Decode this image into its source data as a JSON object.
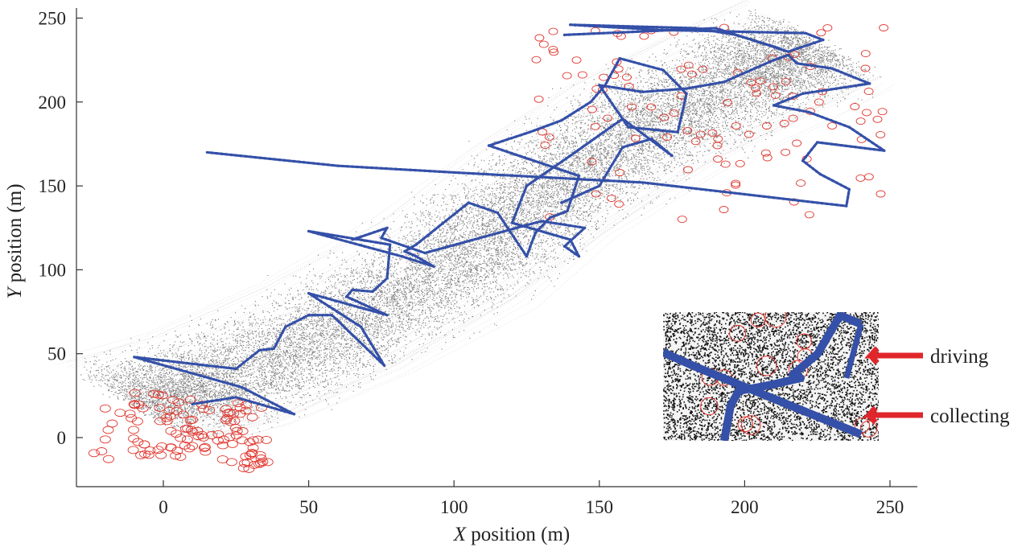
{
  "chart_data": {
    "type": "scatter",
    "title": "",
    "xlabel_var": "X",
    "xlabel_rest": " position (m)",
    "ylabel_var": "Y",
    "ylabel_rest": " position (m)",
    "xlim": [
      -30,
      260
    ],
    "ylim": [
      -30,
      255
    ],
    "x_ticks": [
      0,
      50,
      100,
      150,
      200,
      250
    ],
    "y_ticks": [
      0,
      50,
      100,
      150,
      200,
      250
    ],
    "grid": false,
    "colors": {
      "path": "#3450a8",
      "cloud": "#1a1a1a",
      "targets": "#e0342c",
      "arrows": "#e0262b"
    },
    "series": [
      {
        "role": "path",
        "points": [
          [
            10,
            20
          ],
          [
            25,
            24
          ],
          [
            45,
            14
          ],
          [
            27,
            30
          ],
          [
            -10,
            48
          ],
          [
            25,
            41
          ],
          [
            33,
            52
          ],
          [
            38,
            53
          ],
          [
            42,
            66
          ],
          [
            50,
            73
          ],
          [
            58,
            73
          ],
          [
            76,
            43
          ],
          [
            68,
            66
          ],
          [
            50,
            86
          ],
          [
            77,
            73
          ],
          [
            63,
            84
          ],
          [
            65,
            88
          ],
          [
            72,
            87
          ],
          [
            77,
            95
          ],
          [
            78,
            115
          ],
          [
            50,
            123
          ],
          [
            82,
            108
          ],
          [
            93,
            102
          ],
          [
            87,
            108
          ],
          [
            83,
            111
          ],
          [
            87,
            115
          ],
          [
            105,
            140
          ],
          [
            115,
            134
          ],
          [
            125,
            108
          ],
          [
            128,
            122
          ],
          [
            133,
            131
          ],
          [
            139,
            135
          ],
          [
            143,
            156
          ],
          [
            112,
            174
          ],
          [
            126,
            182
          ],
          [
            137,
            189
          ],
          [
            147,
            200
          ],
          [
            152,
            210
          ],
          [
            157,
            226
          ],
          [
            172,
            219
          ],
          [
            180,
            205
          ],
          [
            177,
            182
          ],
          [
            160,
            185
          ],
          [
            150,
            210
          ],
          [
            165,
            206
          ],
          [
            180,
            208
          ],
          [
            193,
            212
          ],
          [
            210,
            225
          ],
          [
            215,
            228
          ],
          [
            218,
            223
          ],
          [
            230,
            220
          ],
          [
            243,
            211
          ],
          [
            220,
            205
          ],
          [
            210,
            198
          ],
          [
            222,
            194
          ],
          [
            236,
            185
          ],
          [
            248,
            171
          ],
          [
            225,
            176
          ],
          [
            220,
            165
          ],
          [
            226,
            157
          ],
          [
            236,
            148
          ],
          [
            235,
            138
          ],
          [
            200,
            145
          ],
          [
            165,
            152
          ],
          [
            100,
            158
          ],
          [
            60,
            162
          ],
          [
            15,
            170
          ]
        ]
      },
      {
        "role": "path",
        "points": [
          [
            137,
            140
          ],
          [
            150,
            150
          ],
          [
            158,
            173
          ],
          [
            168,
            178
          ],
          [
            175,
            168
          ],
          [
            158,
            190
          ],
          [
            140,
            168
          ],
          [
            125,
            150
          ],
          [
            120,
            128
          ],
          [
            140,
            118
          ],
          [
            143,
            108
          ],
          [
            138,
            114
          ],
          [
            145,
            125
          ],
          [
            130,
            129
          ],
          [
            90,
            110
          ],
          [
            75,
            119
          ],
          [
            77,
            125
          ],
          [
            65,
            118
          ]
        ]
      },
      {
        "role": "path",
        "points": [
          [
            138,
            240
          ],
          [
            190,
            244
          ],
          [
            215,
            230
          ],
          [
            227,
            237
          ],
          [
            221,
            241
          ],
          [
            170,
            243
          ],
          [
            140,
            246
          ],
          [
            183,
            244
          ],
          [
            197,
            240
          ],
          [
            212,
            232
          ]
        ]
      }
    ],
    "inset_labels": [
      "driving",
      "collecting"
    ]
  }
}
